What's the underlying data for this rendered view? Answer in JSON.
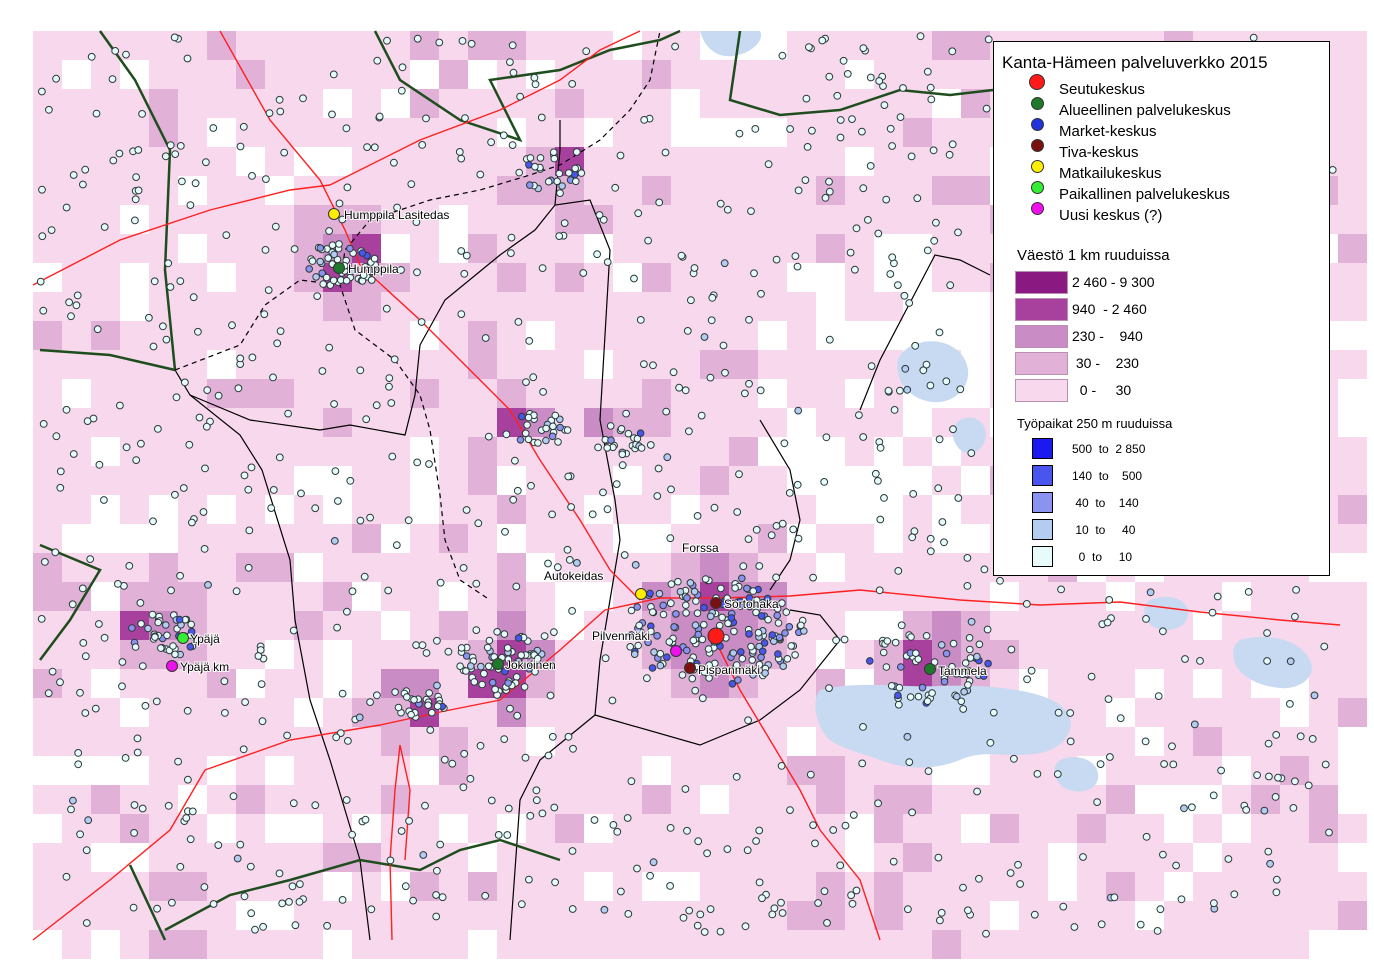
{
  "legend": {
    "title": "Kanta-Hämeen palveluverkko 2015",
    "centers": [
      {
        "label": "Seutukeskus",
        "color": "#ff1a1a",
        "icon": "red-dot-icon"
      },
      {
        "label": "Alueellinen palvelukeskus",
        "color": "#1e7a2a",
        "icon": "dark-green-dot-icon"
      },
      {
        "label": "Market-keskus",
        "color": "#2233dd",
        "icon": "blue-dot-icon"
      },
      {
        "label": "Tiva-keskus",
        "color": "#7a1010",
        "icon": "dark-red-dot-icon"
      },
      {
        "label": "Matkailukeskus",
        "color": "#ffee00",
        "icon": "yellow-dot-icon"
      },
      {
        "label": "Paikallinen palvelukeskus",
        "color": "#33ee33",
        "icon": "green-dot-icon"
      },
      {
        "label": "Uusi keskus (?)",
        "color": "#ee11ee",
        "icon": "magenta-dot-icon"
      }
    ],
    "population_title": "Väestö 1 km ruuduissa",
    "population_classes": [
      {
        "label": "2 460 - 9 300",
        "color": "#8a1a82"
      },
      {
        "label": "940  - 2 460",
        "color": "#a8419e"
      },
      {
        "label": "230 -    940",
        "color": "#c98cc4"
      },
      {
        "label": " 30 -    230",
        "color": "#e2b1d8"
      },
      {
        "label": "  0 -     30",
        "color": "#f8d8ec"
      }
    ],
    "jobs_title": "Työpaikat 250 m ruuduissa",
    "jobs_classes": [
      {
        "label": "500  to  2 850",
        "color": "#1a1af0"
      },
      {
        "label": "140  to    500",
        "color": "#4a55f0"
      },
      {
        "label": " 40  to    140",
        "color": "#8c92f0"
      },
      {
        "label": " 10  to     40",
        "color": "#b4cbf2"
      },
      {
        "label": "  0  to     10",
        "color": "#e8fbfb"
      }
    ]
  },
  "places": [
    {
      "name": "Humppila Lasitedas",
      "type": "Matkailukeskus"
    },
    {
      "name": "Humppila",
      "type": "Alueellinen palvelukeskus"
    },
    {
      "name": "Ypäjä",
      "type": "Paikallinen palvelukeskus"
    },
    {
      "name": "Ypäjä km",
      "type": "Uusi keskus (?)"
    },
    {
      "name": "Jokioinen",
      "type": "Alueellinen palvelukeskus"
    },
    {
      "name": "Autokeidas",
      "type": "Matkailukeskus"
    },
    {
      "name": "Forssa",
      "type": "Seutukeskus"
    },
    {
      "name": "Sortohaka",
      "type": "Tiva-keskus"
    },
    {
      "name": "Pilvenmäki",
      "type": "Uusi keskus (?)"
    },
    {
      "name": "Pispanmäki",
      "type": "Tiva-keskus"
    },
    {
      "name": "Tammela",
      "type": "Alueellinen palvelukeskus"
    }
  ],
  "map_colors": {
    "background": "#ffffff",
    "population_base": "#f8d8ec",
    "lake": "#c8daf2",
    "road": "#ff2020",
    "municipal_border": "#000000",
    "regional_border": "#1e4d1e",
    "job_circle_fill": "#e8fbfb",
    "job_circle_stroke": "#2a3a3a"
  }
}
